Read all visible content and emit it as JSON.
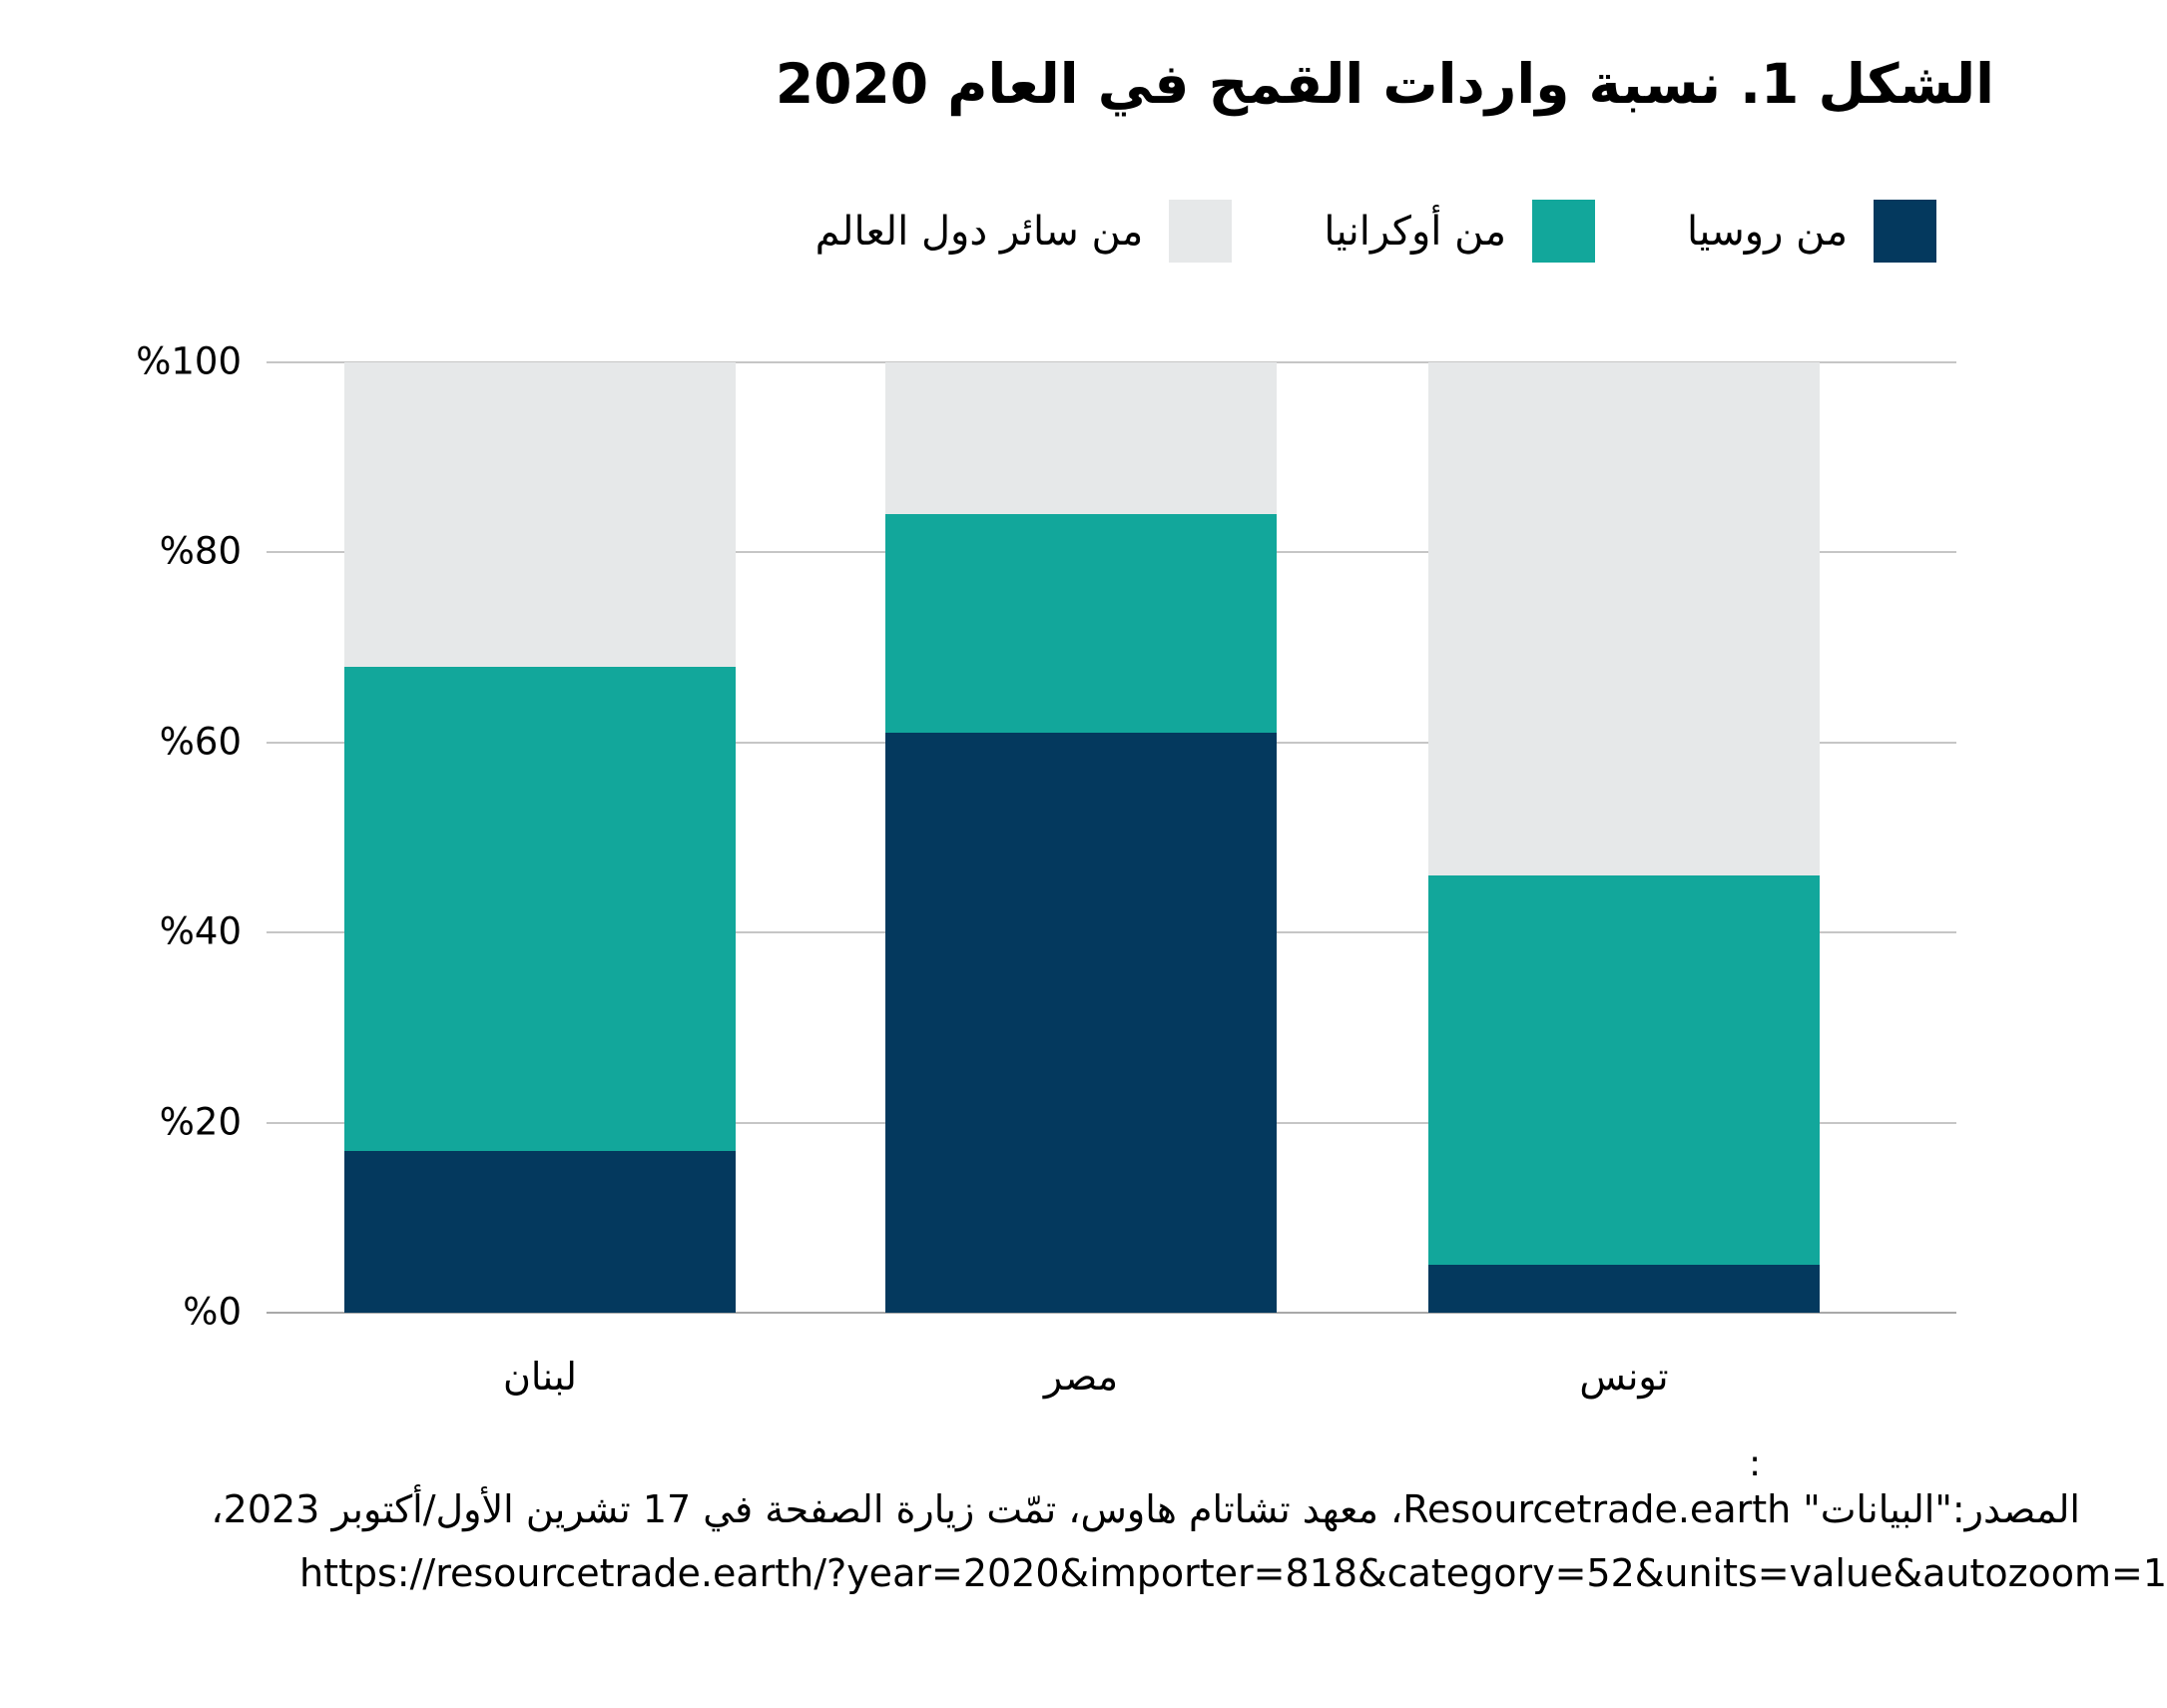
{
  "title": "الشكل 1. نسبة واردات القمح في العام 2020",
  "chart_data": {
    "type": "bar",
    "stacked": true,
    "direction": "rtl",
    "title": "الشكل 1. نسبة واردات القمح في العام 2020",
    "categories": [
      "لبنان",
      "مصر",
      "تونس"
    ],
    "series": [
      {
        "name": "من روسيا",
        "color": "#04395E",
        "values": [
          17,
          61,
          5
        ]
      },
      {
        "name": "من أوكرانيا",
        "color": "#12A79B",
        "values": [
          51,
          23,
          41
        ]
      },
      {
        "name": "من سائر دول العالم",
        "color": "#E6E8E9",
        "values": [
          32,
          16,
          54
        ]
      }
    ],
    "ylim": [
      0,
      100
    ],
    "yticks": [
      {
        "value": 0,
        "label": "%0"
      },
      {
        "value": 20,
        "label": "%20"
      },
      {
        "value": 40,
        "label": "%40"
      },
      {
        "value": 60,
        "label": "%60"
      },
      {
        "value": 80,
        "label": "%80"
      },
      {
        "value": 100,
        "label": "%100"
      }
    ],
    "grid": true,
    "legend_position": "top-right"
  },
  "legend": {
    "items": [
      {
        "label": "من روسيا",
        "color": "#04395E"
      },
      {
        "label": "من أوكرانيا",
        "color": "#12A79B"
      },
      {
        "label": "من سائر دول العالم",
        "color": "#E6E8E9"
      }
    ]
  },
  "source": {
    "colon": ":",
    "line": "المصدر:\"البيانات\" Resourcetrade.earth، معهد تشاتام هاوس، تمّت زيارة الصفحة في 17 تشرين الأول/أكتوبر 2023،",
    "url": "https://resourcetrade.earth/?year=2020&importer=818&category=52&units=value&autozoom=1"
  },
  "colors": {
    "russia": "#04395E",
    "ukraine": "#12A79B",
    "rest_of_world": "#E6E8E9",
    "gridline": "#C6C6C6",
    "axis_baseline": "#A9A9A9",
    "text": "#000000"
  }
}
